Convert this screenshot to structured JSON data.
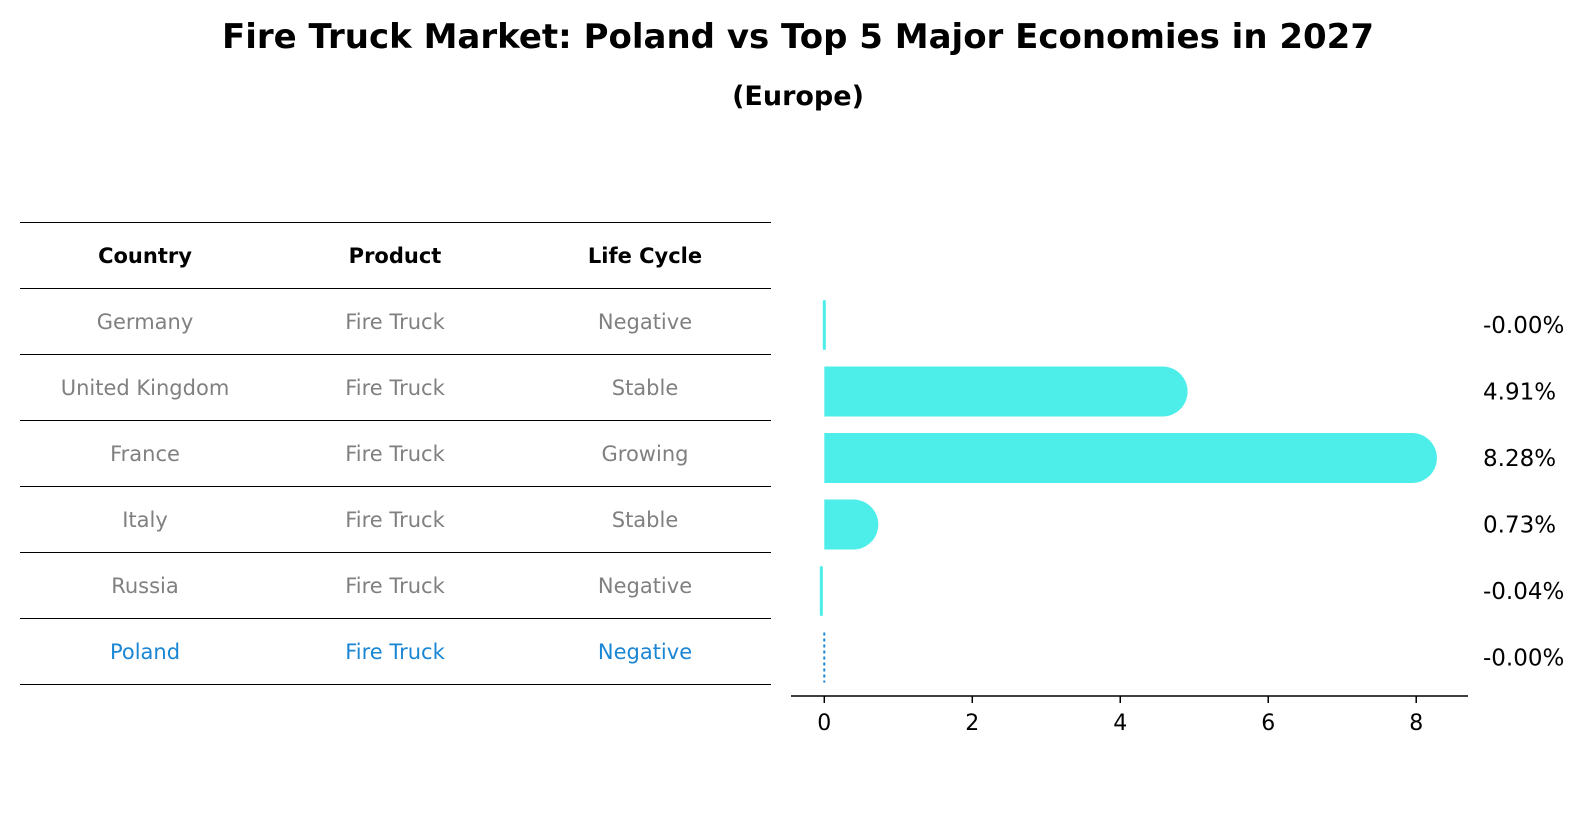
{
  "title": "Fire Truck Market: Poland vs Top 5 Major Economies in 2027",
  "subtitle": "(Europe)",
  "table": {
    "headers": [
      "Country",
      "Product",
      "Life Cycle"
    ],
    "rows": [
      {
        "country": "Germany",
        "product": "Fire Truck",
        "life_cycle": "Negative"
      },
      {
        "country": "United Kingdom",
        "product": "Fire Truck",
        "life_cycle": "Stable"
      },
      {
        "country": "France",
        "product": "Fire Truck",
        "life_cycle": "Growing"
      },
      {
        "country": "Italy",
        "product": "Fire Truck",
        "life_cycle": "Stable"
      },
      {
        "country": "Russia",
        "product": "Fire Truck",
        "life_cycle": "Negative"
      },
      {
        "country": "Poland",
        "product": "Fire Truck",
        "life_cycle": "Negative"
      }
    ],
    "highlight_color": "#1a86d4",
    "text_color": "#808080"
  },
  "chart_data": {
    "type": "bar",
    "orientation": "horizontal",
    "categories": [
      "Germany",
      "United Kingdom",
      "France",
      "Italy",
      "Russia",
      "Poland"
    ],
    "values": [
      -0.0,
      4.91,
      8.28,
      0.73,
      -0.04,
      -0.0
    ],
    "value_labels": [
      "-0.00%",
      "4.91%",
      "8.28%",
      "0.73%",
      "-0.04%",
      "-0.00%"
    ],
    "xticks": [
      0,
      2,
      4,
      6,
      8
    ],
    "xlim": [
      -0.45,
      8.7
    ],
    "bar_color": "#4deeea",
    "highlight_category": "Poland",
    "highlight_color": "#1a86d4",
    "xlabel": "",
    "ylabel": "",
    "grid": false
  }
}
